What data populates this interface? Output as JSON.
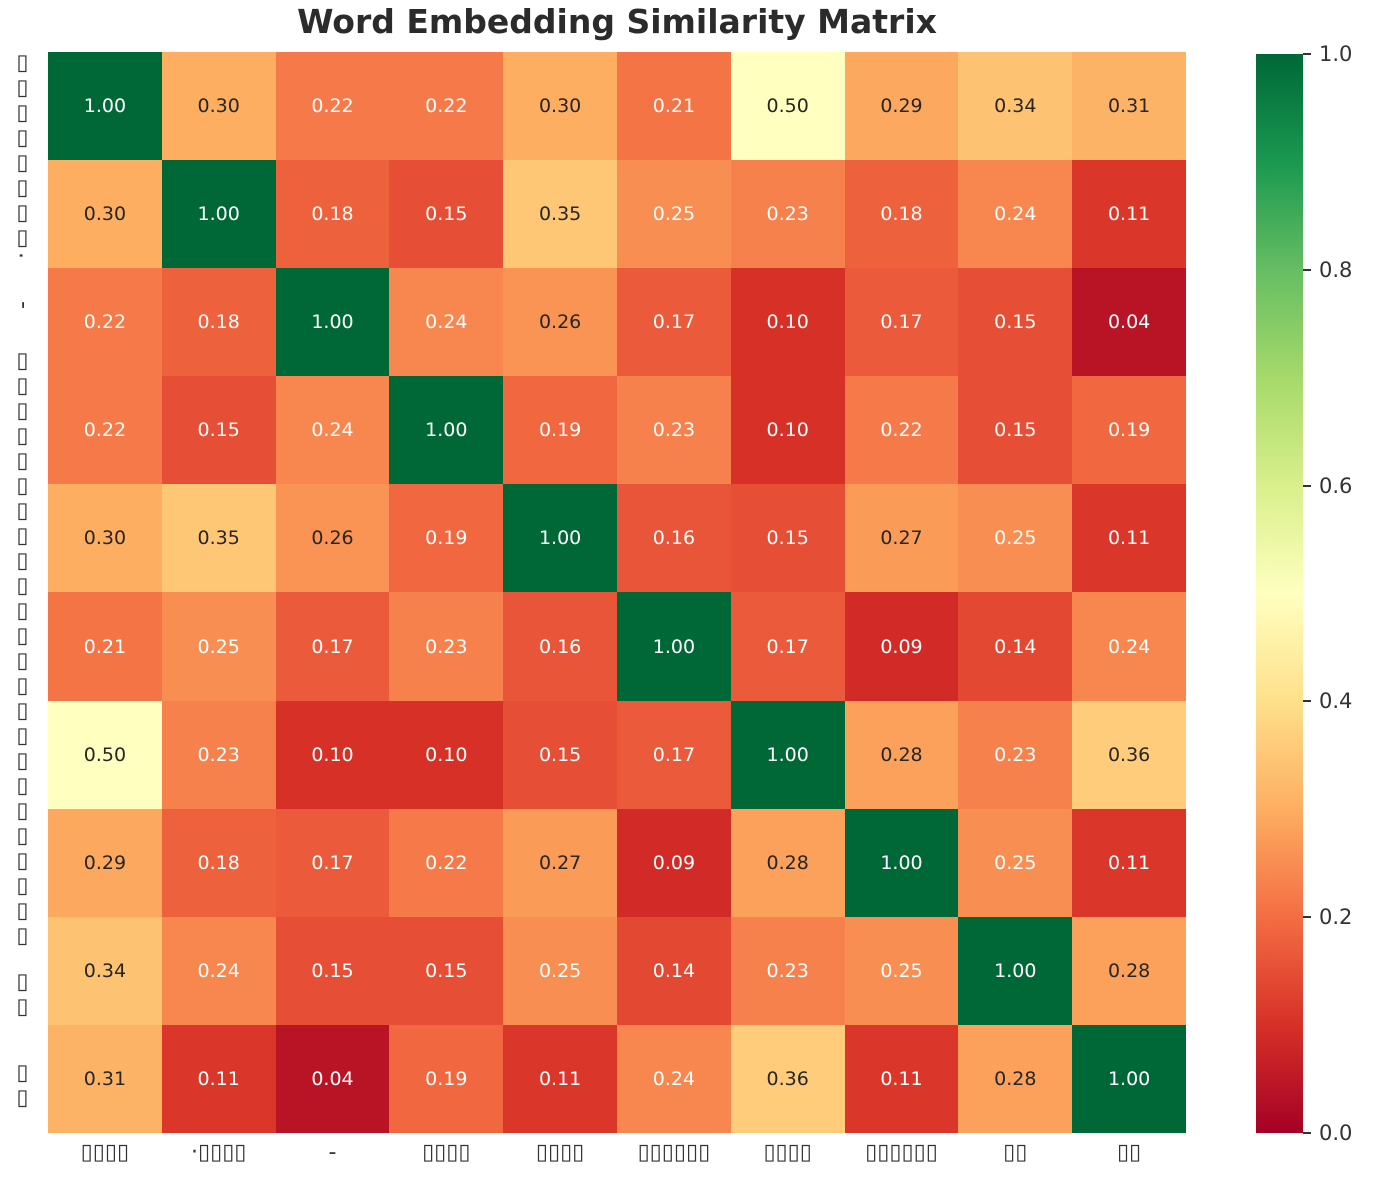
{
  "title": "Word Embedding Similarity Matrix",
  "chart_data": {
    "type": "heatmap",
    "title": "Word Embedding Similarity Matrix",
    "x_labels": [
      "▯▯▯▯",
      "·▯▯▯▯",
      "-",
      "▯▯▯▯",
      "▯▯▯▯",
      "▯▯▯▯▯▯",
      "▯▯▯▯",
      "▯▯▯▯▯▯",
      "▯▯",
      "▯▯"
    ],
    "y_labels": [
      "▯▯▯▯",
      "·▯▯▯▯",
      "-",
      "▯▯▯▯",
      "▯▯▯▯",
      "▯▯▯▯▯▯",
      "▯▯▯▯",
      "▯▯▯▯▯▯",
      "▯▯",
      "▯▯"
    ],
    "matrix": [
      [
        1.0,
        0.3,
        0.22,
        0.22,
        0.3,
        0.21,
        0.5,
        0.29,
        0.34,
        0.31
      ],
      [
        0.3,
        1.0,
        0.18,
        0.15,
        0.35,
        0.25,
        0.23,
        0.18,
        0.24,
        0.11
      ],
      [
        0.22,
        0.18,
        1.0,
        0.24,
        0.26,
        0.17,
        0.1,
        0.17,
        0.15,
        0.04
      ],
      [
        0.22,
        0.15,
        0.24,
        1.0,
        0.19,
        0.23,
        0.1,
        0.22,
        0.15,
        0.19
      ],
      [
        0.3,
        0.35,
        0.26,
        0.19,
        1.0,
        0.16,
        0.15,
        0.27,
        0.25,
        0.11
      ],
      [
        0.21,
        0.25,
        0.17,
        0.23,
        0.16,
        1.0,
        0.17,
        0.09,
        0.14,
        0.24
      ],
      [
        0.5,
        0.23,
        0.1,
        0.1,
        0.15,
        0.17,
        1.0,
        0.28,
        0.23,
        0.36
      ],
      [
        0.29,
        0.18,
        0.17,
        0.22,
        0.27,
        0.09,
        0.28,
        1.0,
        0.25,
        0.11
      ],
      [
        0.34,
        0.24,
        0.15,
        0.15,
        0.25,
        0.14,
        0.23,
        0.25,
        1.0,
        0.28
      ],
      [
        0.31,
        0.11,
        0.04,
        0.19,
        0.11,
        0.24,
        0.36,
        0.11,
        0.28,
        1.0
      ]
    ],
    "value_decimals": 2,
    "vmin": 0.0,
    "vmax": 1.0,
    "colormap": "RdYlGn",
    "colormap_stops": [
      "#a50026",
      "#d73027",
      "#f46d43",
      "#fdae61",
      "#fee08b",
      "#ffffbf",
      "#d9ef8b",
      "#a6d96a",
      "#66bd63",
      "#1a9850",
      "#006837"
    ],
    "colorbar_ticks": [
      {
        "value": 1.0,
        "label": "1.0"
      },
      {
        "value": 0.8,
        "label": "0.8"
      },
      {
        "value": 0.6,
        "label": "0.6"
      },
      {
        "value": 0.4,
        "label": "0.4"
      },
      {
        "value": 0.2,
        "label": "0.2"
      },
      {
        "value": 0.0,
        "label": "0.0"
      }
    ],
    "legend_position": "right",
    "grid": false
  },
  "style": {
    "background": "#ffffff",
    "title_color": "#2b2b2b",
    "tick_label_color": "#333333",
    "annot_dark": "#262626",
    "annot_light": "#ffffff",
    "luminance_threshold": 0.408
  }
}
